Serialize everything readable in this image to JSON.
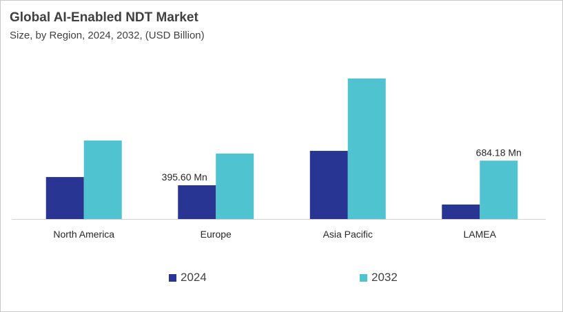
{
  "chart_data": {
    "type": "bar",
    "title": "Global AI-Enabled NDT Market",
    "subtitle": "Size, by Region, 2024, 2032, (USD Billion)",
    "categories": [
      "North America",
      "Europe",
      "Asia Pacific",
      "LAMEA"
    ],
    "series": [
      {
        "name": "2024",
        "color": "#283593",
        "values": [
          492,
          395.6,
          799,
          170
        ]
      },
      {
        "name": "2032",
        "color": "#4fc3d0",
        "values": [
          920,
          767,
          1647,
          684.18
        ]
      }
    ],
    "data_labels": [
      {
        "category": "Europe",
        "series": "2024",
        "text": "395.60 Mn"
      },
      {
        "category": "LAMEA",
        "series": "2032",
        "text": "684.18 Mn"
      }
    ],
    "ylim": [
      0,
      1700
    ],
    "y_axis_visible": false,
    "grid": false,
    "legend_position": "bottom"
  }
}
